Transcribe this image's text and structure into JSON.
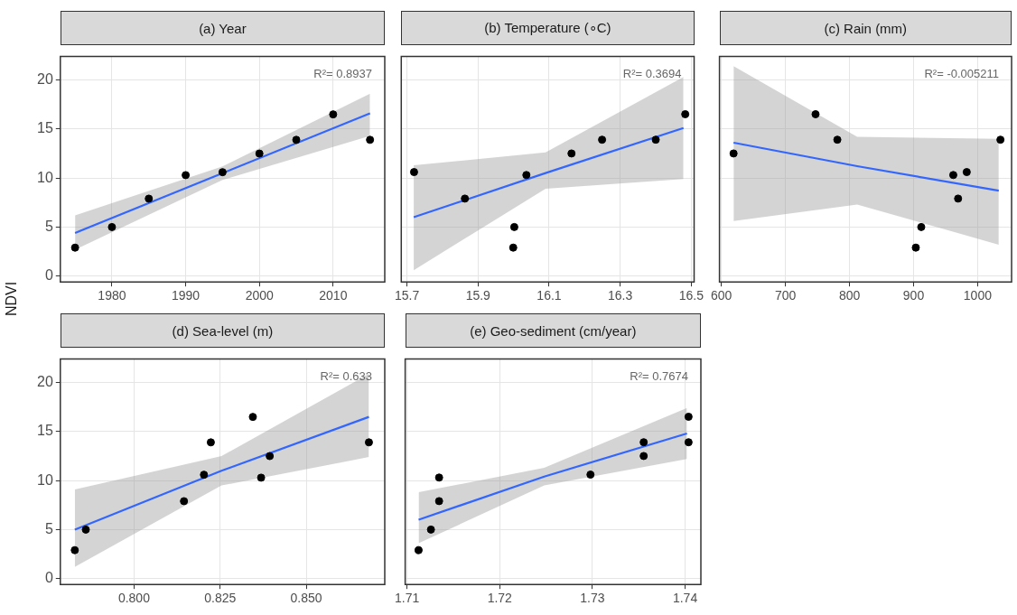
{
  "chart_data": [
    {
      "type": "scatter",
      "title": "(a) Year",
      "ylabel": "NDVI",
      "annotations": [
        "R²= 0.8937"
      ],
      "grid": true,
      "legend": false,
      "x": [
        1975,
        1980,
        1985,
        1990,
        1995,
        2000,
        2005,
        2010,
        2015
      ],
      "xlim": [
        1973,
        2017
      ],
      "xticks": [
        1980,
        1990,
        2000,
        2010
      ],
      "ylim": [
        -0.6,
        22.4
      ],
      "yticks": [
        0,
        5,
        10,
        15,
        20
      ],
      "series": [
        {
          "type": "scatter",
          "marker": "circle",
          "color": "#000000",
          "values": [
            2.9,
            5.0,
            7.9,
            10.3,
            10.6,
            12.5,
            13.9,
            16.5,
            13.9
          ]
        },
        {
          "type": "line",
          "marker": "none",
          "color": "#3366ff",
          "x": [
            1975,
            1995,
            2015
          ],
          "values": [
            4.4,
            10.5,
            16.6
          ],
          "lower": [
            2.7,
            9.8,
            14.3
          ],
          "upper": [
            6.2,
            11.2,
            18.6
          ]
        }
      ]
    },
    {
      "type": "scatter",
      "title": "(b) Temperature (∘C)",
      "annotations": [
        "R²= 0.3694"
      ],
      "grid": true,
      "legend": false,
      "tick_labels": "x",
      "x": [
        15.72,
        15.863,
        16.002,
        15.999,
        16.036,
        16.163,
        16.249,
        16.4,
        16.483
      ],
      "xlim": [
        15.684,
        16.508
      ],
      "xticks": [
        15.7,
        15.9,
        16.1,
        16.3,
        16.5
      ],
      "ylim": [
        -0.6,
        22.4
      ],
      "yticks": [
        0,
        5,
        10,
        15,
        20
      ],
      "series": [
        {
          "type": "scatter",
          "marker": "circle",
          "color": "#000000",
          "values": [
            10.6,
            7.9,
            5.0,
            2.9,
            10.3,
            12.5,
            13.9,
            13.9,
            16.5
          ]
        },
        {
          "type": "line",
          "marker": "none",
          "color": "#3366ff",
          "x": [
            15.719,
            16.09,
            16.478
          ],
          "values": [
            6.0,
            10.5,
            15.1
          ],
          "lower": [
            0.6,
            8.9,
            9.9
          ],
          "upper": [
            11.3,
            12.6,
            20.3
          ]
        }
      ]
    },
    {
      "type": "scatter",
      "title": "(c) Rain (mm)",
      "annotations": [
        "R²= -0.005211"
      ],
      "grid": true,
      "legend": false,
      "tick_labels": "x",
      "x": [
        619,
        747,
        781,
        903.5,
        912,
        962,
        983,
        969.5,
        1035.6
      ],
      "xlim": [
        597,
        1053
      ],
      "xticks": [
        600,
        700,
        800,
        900,
        1000
      ],
      "ylim": [
        -0.6,
        22.4
      ],
      "yticks": [
        0,
        5,
        10,
        15,
        20
      ],
      "series": [
        {
          "type": "scatter",
          "marker": "circle",
          "color": "#000000",
          "values": [
            12.5,
            16.5,
            13.9,
            2.9,
            5.0,
            10.3,
            10.6,
            7.9,
            13.9
          ]
        },
        {
          "type": "line",
          "marker": "none",
          "color": "#3366ff",
          "x": [
            619,
            812,
            1033
          ],
          "values": [
            13.6,
            11.2,
            8.7
          ],
          "lower": [
            5.6,
            7.3,
            3.2
          ],
          "upper": [
            21.4,
            14.2,
            14.0
          ]
        }
      ]
    },
    {
      "type": "scatter",
      "title": "(d) Sea-level (m)",
      "annotations": [
        "R²= 0.633"
      ],
      "grid": true,
      "legend": false,
      "x": [
        0.7828,
        0.786,
        0.8145,
        0.8203,
        0.8223,
        0.8345,
        0.8369,
        0.8394,
        0.8682
      ],
      "xlim": [
        0.7786,
        0.8728
      ],
      "xticks": [
        {
          "value": 0.8,
          "label": "0.800"
        },
        {
          "value": 0.825,
          "label": "0.825"
        },
        {
          "value": 0.85,
          "label": "0.850"
        }
      ],
      "ylim": [
        -0.6,
        22.4
      ],
      "yticks": [
        0,
        5,
        10,
        15,
        20
      ],
      "series": [
        {
          "type": "scatter",
          "marker": "circle",
          "color": "#000000",
          "values": [
            2.9,
            5.0,
            7.9,
            10.6,
            13.9,
            16.5,
            10.3,
            12.5,
            13.9
          ]
        },
        {
          "type": "line",
          "marker": "none",
          "color": "#3366ff",
          "x": [
            0.7828,
            0.8254,
            0.8682
          ],
          "values": [
            5.0,
            11.0,
            16.5
          ],
          "lower": [
            1.2,
            9.5,
            12.4
          ],
          "upper": [
            9.1,
            12.5,
            20.9
          ]
        }
      ]
    },
    {
      "type": "scatter",
      "title": "(e) Geo-sediment (cm/year)",
      "annotations": [
        "R²= 0.7674"
      ],
      "grid": true,
      "legend": false,
      "tick_labels": "x",
      "x": [
        1.71125,
        1.71258,
        1.71346,
        1.71346,
        1.72979,
        1.73553,
        1.73553,
        1.74037,
        1.74037
      ],
      "xlim": [
        1.7098,
        1.7417
      ],
      "xticks": [
        1.71,
        1.72,
        1.73,
        1.74
      ],
      "ylim": [
        -0.6,
        22.4
      ],
      "yticks": [
        0,
        5,
        10,
        15,
        20
      ],
      "series": [
        {
          "type": "scatter",
          "marker": "circle",
          "color": "#000000",
          "values": [
            2.9,
            5.0,
            7.9,
            10.3,
            10.6,
            12.5,
            13.9,
            16.5,
            13.9
          ]
        },
        {
          "type": "line",
          "marker": "none",
          "color": "#3366ff",
          "x": [
            1.71125,
            1.7248,
            1.7402
          ],
          "values": [
            6.0,
            10.4,
            14.8
          ],
          "lower": [
            3.6,
            9.5,
            12.2
          ],
          "upper": [
            8.8,
            11.3,
            17.4
          ]
        }
      ]
    }
  ]
}
